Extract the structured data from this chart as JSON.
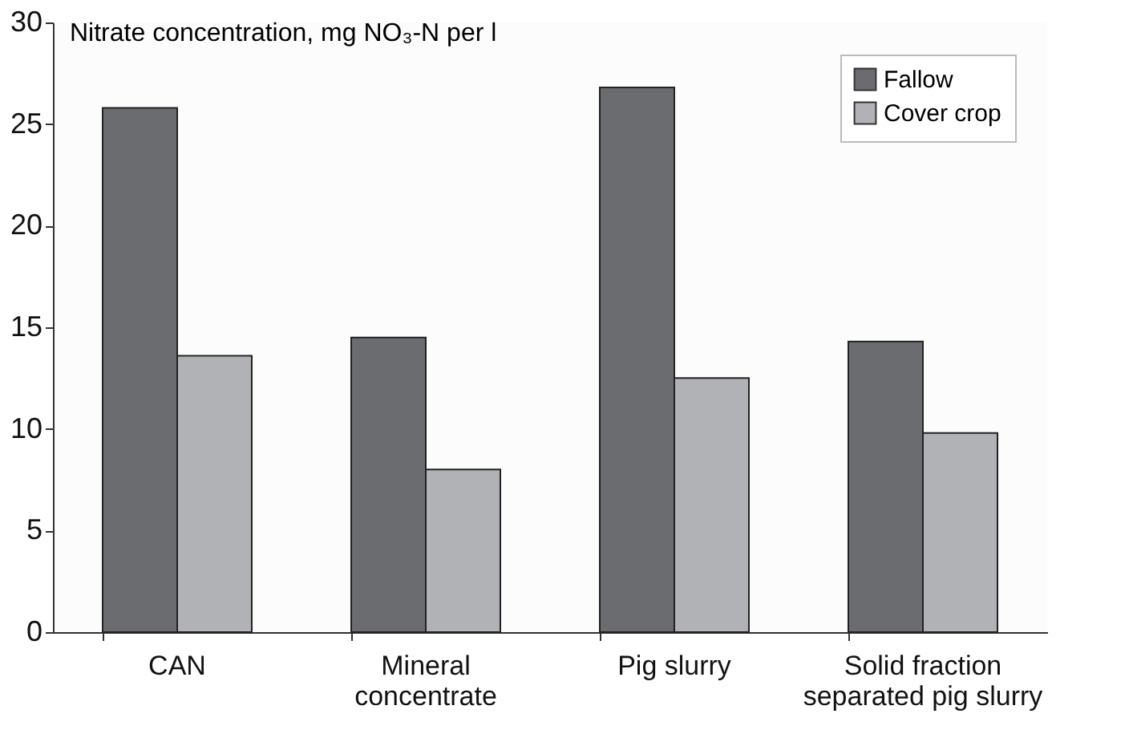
{
  "chart_data": {
    "type": "bar",
    "ylabel": "Nitrate concentration, mg NO₃-N per l",
    "categories": [
      "CAN",
      "Mineral concentrate",
      "Pig slurry",
      "Solid fraction separated pig slurry"
    ],
    "series": [
      {
        "name": "Fallow",
        "color": "#6b6c70",
        "values": [
          25.8,
          14.5,
          26.8,
          14.3
        ]
      },
      {
        "name": "Cover crop",
        "color": "#b0b2b5",
        "values": [
          13.6,
          8.0,
          12.5,
          9.8
        ]
      }
    ],
    "ylim": [
      0,
      30
    ],
    "yticks": [
      0,
      5,
      10,
      15,
      20,
      25,
      30
    ],
    "grid": false,
    "legend": "top right"
  }
}
